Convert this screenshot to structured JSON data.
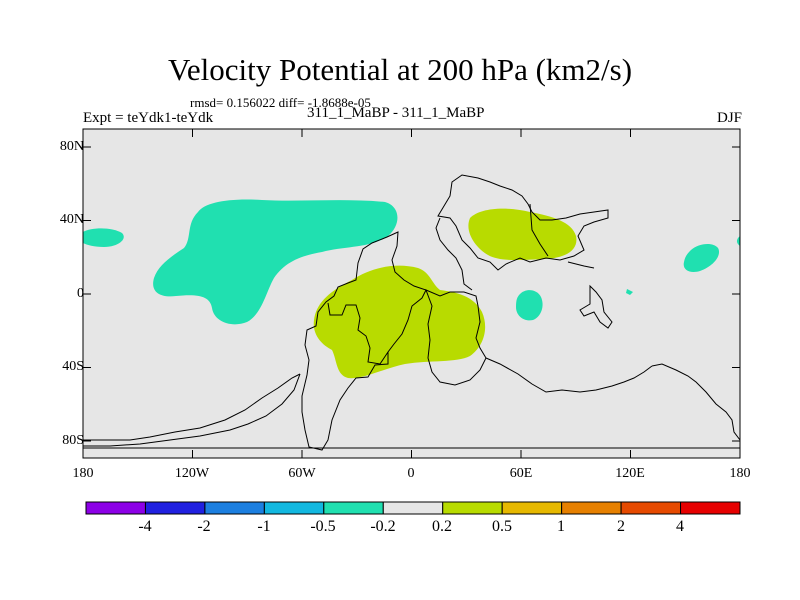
{
  "title": "Velocity Potential at 200 hPa (km2/s)",
  "stats_line": "rmsd= 0.156022 diff= -1.8688e-05",
  "experiment_label": "Expt = teYdk1-teYdk",
  "case_label": "311_1_MaBP - 311_1_MaBP",
  "season": "DJF",
  "map": {
    "background_color": "#e6e6e6",
    "lat_ticks": [
      "80N",
      "40N",
      "0",
      "40S",
      "80S"
    ],
    "lon_ticks": [
      "180",
      "120W",
      "60W",
      "0",
      "60E",
      "120E",
      "180"
    ],
    "negative_region_color": "#20e0b0",
    "positive_region_color": "#b8db00"
  },
  "colorbar": {
    "colors": [
      "#8c00e6",
      "#2020e0",
      "#1c7fe0",
      "#12b8e0",
      "#20e0b0",
      "#e6e6e6",
      "#b8db00",
      "#e6b800",
      "#e68000",
      "#e64a00",
      "#e60000"
    ],
    "labels": [
      "-4",
      "-2",
      "-1",
      "-0.5",
      "-0.2",
      "0.2",
      "0.5",
      "1",
      "2",
      "4"
    ]
  }
}
